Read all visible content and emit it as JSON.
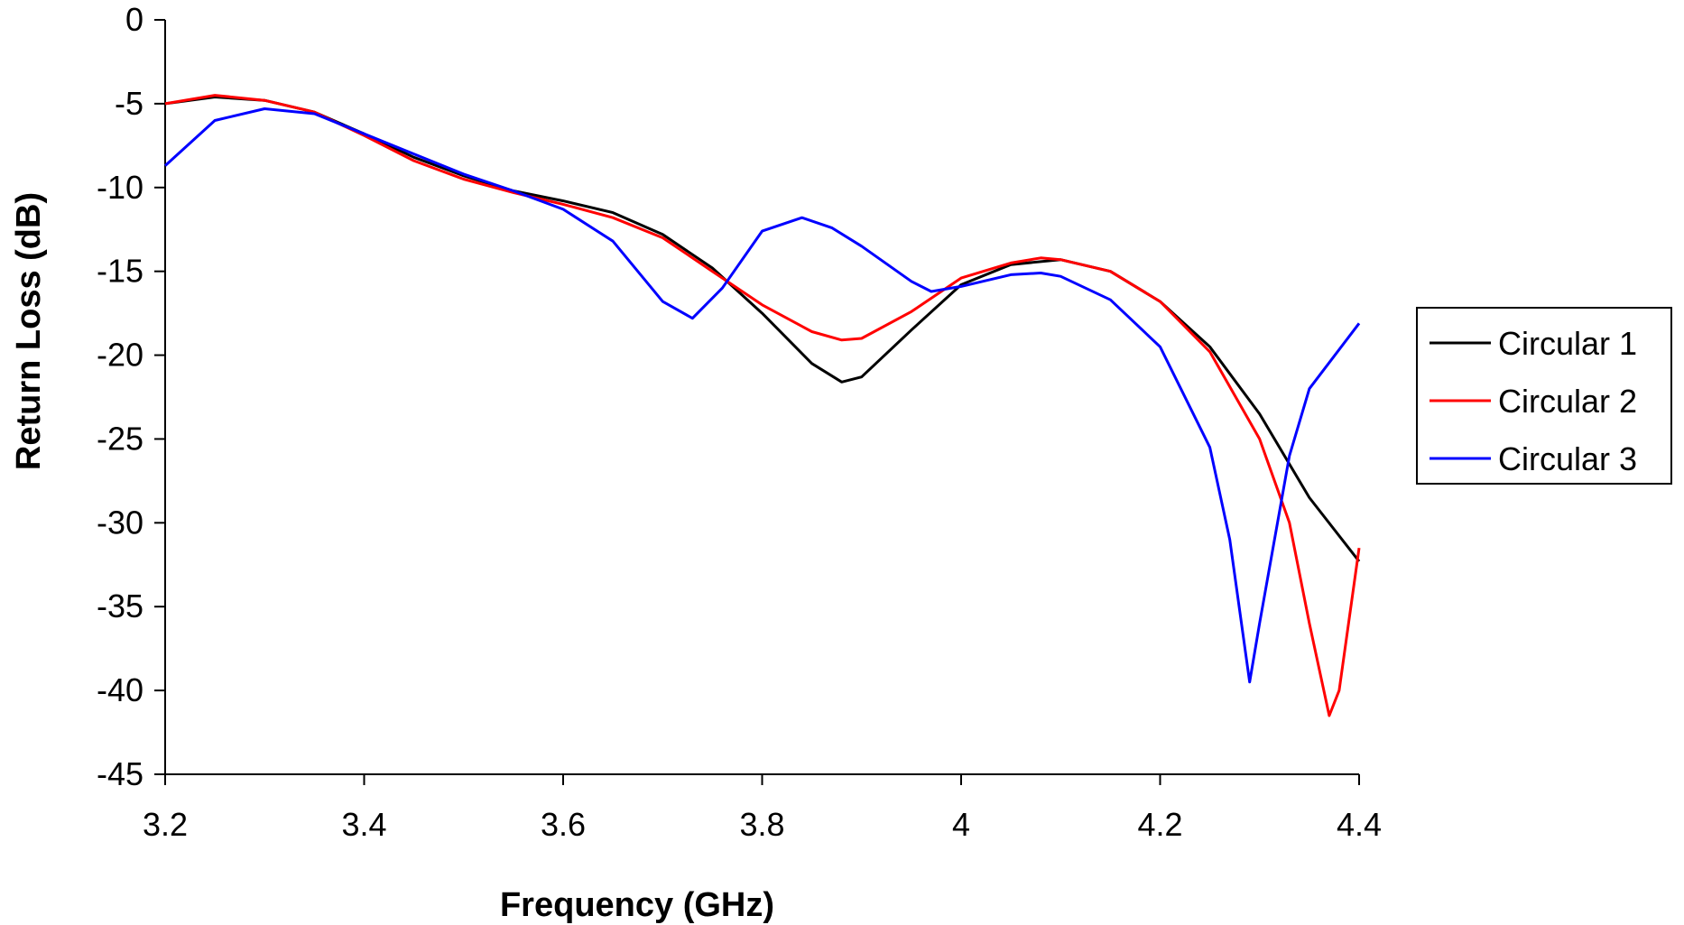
{
  "chart_data": {
    "type": "line",
    "title": "",
    "xlabel": "Frequency (GHz)",
    "ylabel": "Return Loss (dB)",
    "xlim": [
      3.2,
      4.4
    ],
    "ylim": [
      -45,
      0
    ],
    "x_ticks": [
      "3.2",
      "3.4",
      "3.6",
      "3.8",
      "4",
      "4.2",
      "4.4"
    ],
    "x_tick_values": [
      3.2,
      3.4,
      3.6,
      3.8,
      4.0,
      4.2,
      4.4
    ],
    "y_ticks": [
      "0",
      "-5",
      "-10",
      "-15",
      "-20",
      "-25",
      "-30",
      "-35",
      "-40",
      "-45"
    ],
    "y_tick_values": [
      0,
      -5,
      -10,
      -15,
      -20,
      -25,
      -30,
      -35,
      -40,
      -45
    ],
    "grid": false,
    "legend_position": "right",
    "series": [
      {
        "name": "Circular 1",
        "color": "#000000",
        "x": [
          3.2,
          3.25,
          3.3,
          3.35,
          3.4,
          3.45,
          3.5,
          3.55,
          3.6,
          3.65,
          3.7,
          3.75,
          3.8,
          3.85,
          3.88,
          3.9,
          3.95,
          4.0,
          4.05,
          4.1,
          4.15,
          4.2,
          4.25,
          4.3,
          4.35,
          4.4
        ],
        "y": [
          -5.0,
          -4.6,
          -4.8,
          -5.5,
          -6.8,
          -8.2,
          -9.3,
          -10.2,
          -10.8,
          -11.5,
          -12.8,
          -14.8,
          -17.5,
          -20.5,
          -21.6,
          -21.3,
          -18.5,
          -15.8,
          -14.6,
          -14.3,
          -15.0,
          -16.8,
          -19.5,
          -23.5,
          -28.5,
          -32.3
        ]
      },
      {
        "name": "Circular 2",
        "color": "#ff0000",
        "x": [
          3.2,
          3.25,
          3.3,
          3.35,
          3.4,
          3.45,
          3.5,
          3.55,
          3.6,
          3.65,
          3.7,
          3.75,
          3.8,
          3.85,
          3.88,
          3.9,
          3.95,
          4.0,
          4.05,
          4.08,
          4.1,
          4.15,
          4.2,
          4.25,
          4.3,
          4.33,
          4.35,
          4.37,
          4.38,
          4.4
        ],
        "y": [
          -5.0,
          -4.5,
          -4.8,
          -5.5,
          -6.9,
          -8.4,
          -9.5,
          -10.3,
          -11.0,
          -11.8,
          -13.0,
          -15.0,
          -17.0,
          -18.6,
          -19.1,
          -19.0,
          -17.4,
          -15.4,
          -14.5,
          -14.2,
          -14.3,
          -15.0,
          -16.8,
          -19.8,
          -25.0,
          -30.0,
          -36.0,
          -41.5,
          -40.0,
          -31.5
        ]
      },
      {
        "name": "Circular 3",
        "color": "#0000ff",
        "x": [
          3.2,
          3.25,
          3.3,
          3.35,
          3.4,
          3.45,
          3.5,
          3.55,
          3.6,
          3.65,
          3.7,
          3.73,
          3.76,
          3.8,
          3.84,
          3.87,
          3.9,
          3.95,
          3.97,
          4.0,
          4.05,
          4.08,
          4.1,
          4.15,
          4.2,
          4.25,
          4.27,
          4.29,
          4.3,
          4.33,
          4.35,
          4.4
        ],
        "y": [
          -8.7,
          -6.0,
          -5.3,
          -5.6,
          -6.8,
          -8.0,
          -9.2,
          -10.2,
          -11.3,
          -13.2,
          -16.8,
          -17.8,
          -16.0,
          -12.6,
          -11.8,
          -12.4,
          -13.5,
          -15.6,
          -16.2,
          -15.9,
          -15.2,
          -15.1,
          -15.3,
          -16.7,
          -19.5,
          -25.5,
          -31.0,
          -39.5,
          -36.0,
          -26.0,
          -22.0,
          -18.1
        ]
      }
    ]
  }
}
